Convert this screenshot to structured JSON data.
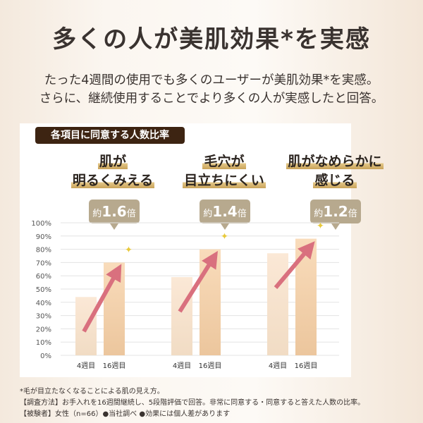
{
  "header": {
    "title": "多くの人が美肌効果*を実感",
    "subtitle_line1": "たった4週間の使用でも多くのユーザーが美肌効果*を実感。",
    "subtitle_line2": "さらに、継続使用することでより多くの人が実感したと回答。"
  },
  "chart_label": "各項目に同意する人数比率",
  "groups": [
    {
      "heading_line1": "肌が",
      "heading_line2": "明るくみえる",
      "ratio_prefix": "約",
      "ratio": "1.6",
      "ratio_suffix": "倍"
    },
    {
      "heading_line1": "毛穴が",
      "heading_line2": "目立ちにくい",
      "ratio_prefix": "約",
      "ratio": "1.4",
      "ratio_suffix": "倍"
    },
    {
      "heading_line1": "肌がなめらかに",
      "heading_line2": "感じる",
      "ratio_prefix": "約",
      "ratio": "1.2",
      "ratio_suffix": "倍"
    }
  ],
  "chart_data": {
    "type": "bar",
    "categories": [
      "肌が明るくみえる",
      "毛穴が目立ちにくい",
      "肌がなめらかに感じる"
    ],
    "series": [
      {
        "name": "4週目",
        "values": [
          44,
          59,
          77
        ]
      },
      {
        "name": "16週目",
        "values": [
          70,
          80,
          88
        ]
      }
    ],
    "ylim": [
      0,
      100
    ],
    "yticks": [
      "0%",
      "10%",
      "20%",
      "30%",
      "40%",
      "50%",
      "60%",
      "70%",
      "80%",
      "90%",
      "100%"
    ],
    "grid": true,
    "colors": {
      "week4": "#f1dcc4",
      "week16": "#ecc69d",
      "arrow": "#d9707e",
      "gridline": "#e3e3e3"
    }
  },
  "footnotes": [
    "*毛が目立たなくなることによる肌の見え方。",
    "【調査方法】お手入れを16週間継続し、5段階評価で回答。非常に同意する・同意すると答えた人数の比率。",
    "【被験者】女性（n=66）●当社調べ ●効果には個人差があります"
  ]
}
